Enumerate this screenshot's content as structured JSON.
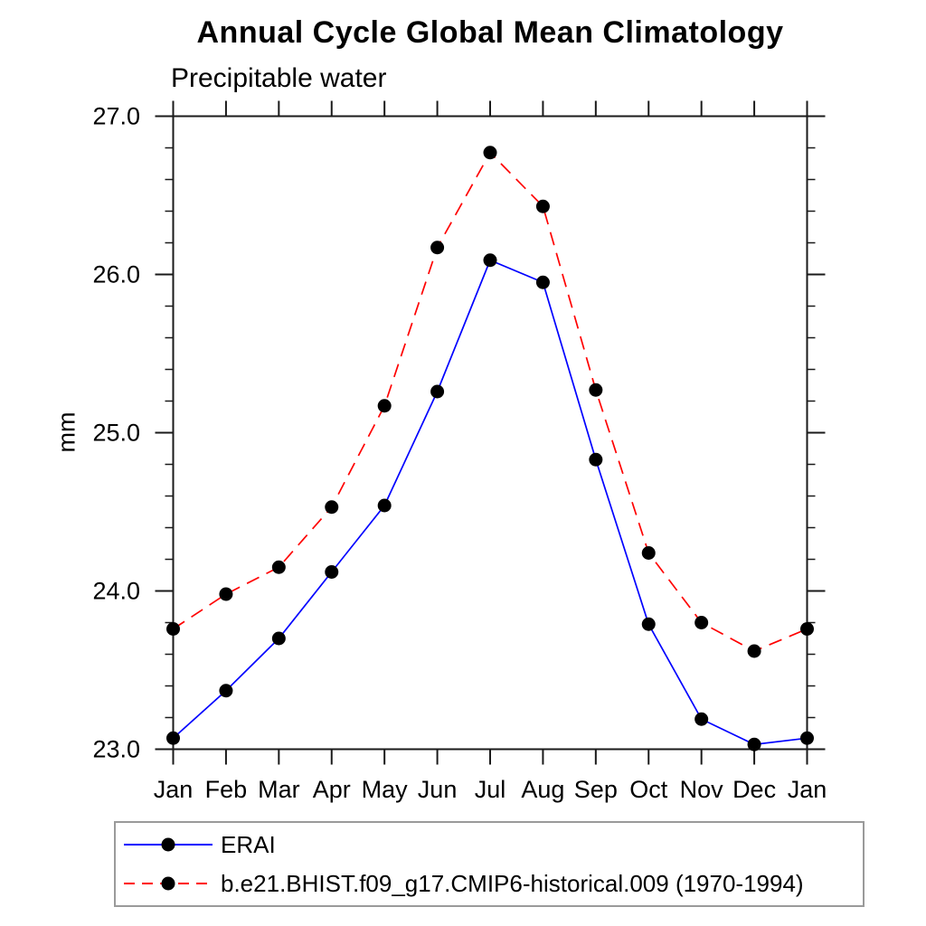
{
  "chart_data": {
    "type": "line",
    "title": "Annual Cycle Global Mean Climatology",
    "subtitle": "Precipitable water",
    "ylabel": "mm",
    "xlabel": "",
    "x_tick_labels": [
      "Jan",
      "Feb",
      "Mar",
      "Apr",
      "May",
      "Jun",
      "Jul",
      "Aug",
      "Sep",
      "Oct",
      "Nov",
      "Dec",
      "Jan"
    ],
    "ylim": [
      23.0,
      27.0
    ],
    "y_tick_labels": [
      "23.0",
      "24.0",
      "25.0",
      "26.0",
      "27.0"
    ],
    "y_major_ticks": [
      23.0,
      24.0,
      25.0,
      26.0,
      27.0
    ],
    "y_minor_step": 0.2,
    "grid": false,
    "legend_position": "bottom-left-box",
    "series": [
      {
        "name": "ERAI",
        "color": "#0000ff",
        "line_style": "solid",
        "marker": "filled-circle",
        "marker_color": "#000000",
        "values": [
          23.07,
          23.37,
          23.7,
          24.12,
          24.54,
          25.26,
          26.09,
          25.95,
          24.83,
          23.79,
          23.19,
          23.03,
          23.07
        ]
      },
      {
        "name": "b.e21.BHIST.f09_g17.CMIP6-historical.009 (1970-1994)",
        "color": "#ff0000",
        "line_style": "dashed",
        "marker": "filled-circle",
        "marker_color": "#000000",
        "values": [
          23.76,
          23.98,
          24.15,
          24.53,
          25.17,
          26.17,
          26.77,
          26.43,
          25.27,
          24.24,
          23.8,
          23.62,
          23.76
        ]
      }
    ]
  },
  "colors": {
    "axis": "#1a1a1a",
    "tick": "#1a1a1a",
    "text": "#000000",
    "legend_border": "#9a9a9a"
  }
}
